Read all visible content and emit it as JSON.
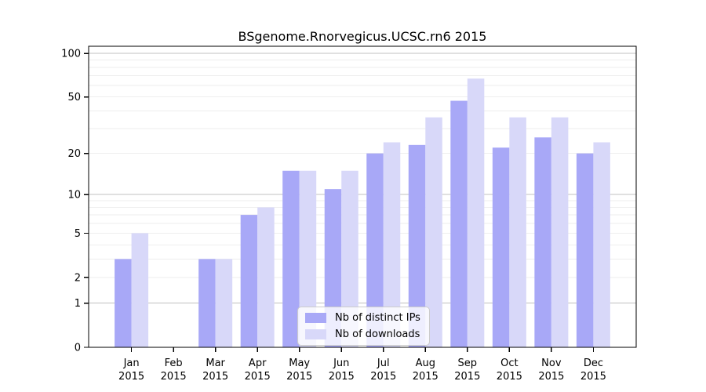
{
  "chart_data": {
    "type": "bar",
    "title": "BSgenome.Rnorvegicus.UCSC.rn6 2015",
    "categories": [
      "Jan 2015",
      "Feb 2015",
      "Mar 2015",
      "Apr 2015",
      "May 2015",
      "Jun 2015",
      "Jul 2015",
      "Aug 2015",
      "Sep 2015",
      "Oct 2015",
      "Nov 2015",
      "Dec 2015"
    ],
    "series": [
      {
        "name": "Nb of distinct IPs",
        "color": "#a8a8f7",
        "values": [
          3,
          0,
          3,
          7,
          15,
          11,
          20,
          23,
          47,
          22,
          26,
          20
        ]
      },
      {
        "name": "Nb of downloads",
        "color": "#d8d8f9",
        "values": [
          5,
          0,
          3,
          8,
          15,
          15,
          24,
          36,
          67,
          36,
          36,
          24
        ]
      }
    ],
    "xlabel": "",
    "ylabel": "",
    "y_ticks": [
      100,
      50,
      20,
      10,
      5,
      2,
      1,
      0
    ],
    "ylim": [
      0,
      112
    ],
    "scale": "log1p",
    "grid": "on",
    "legend_position": "inside-bottom-center"
  }
}
